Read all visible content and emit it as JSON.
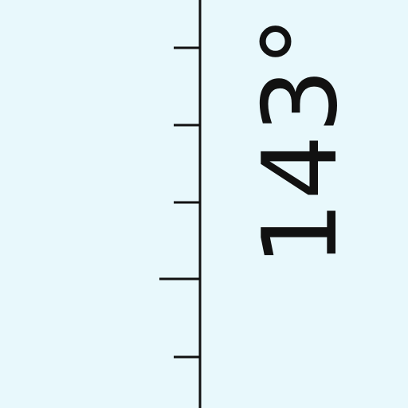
{
  "map": {
    "meridian_label": "143°",
    "colors": {
      "background": "#e8f8fc",
      "ink": "#111111"
    }
  }
}
